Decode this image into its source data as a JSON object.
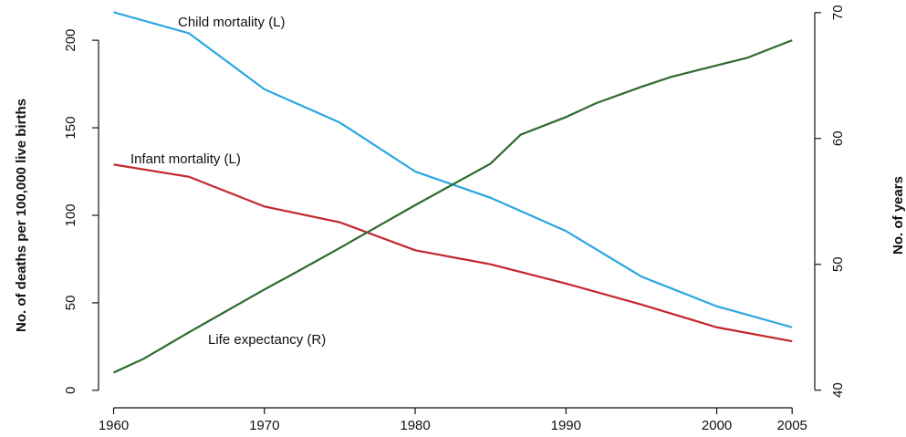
{
  "chart_data": {
    "type": "line",
    "y_label": "No. of deaths per 100,000 live births",
    "y2_label": "No. of years",
    "xlim": [
      1959,
      2006.5
    ],
    "xticks": [
      1960,
      1970,
      1980,
      1990,
      2000,
      2005
    ],
    "ylim": [
      -10,
      223
    ],
    "yticks": [
      0,
      50,
      100,
      150,
      200
    ],
    "y2lim": [
      38.6,
      71
    ],
    "y2ticks": [
      40,
      50,
      60,
      70
    ],
    "grid": false,
    "series": [
      {
        "name": "Child mortality (L)",
        "color": "#2aa6e2",
        "x": [
          1960,
          1965,
          1970,
          1975,
          1980,
          1985,
          1990,
          1995,
          2000,
          2005
        ],
        "values": [
          216,
          204,
          172,
          153,
          125,
          110,
          91,
          65,
          48,
          36
        ]
      },
      {
        "name": "Infant mortality (L)",
        "color": "#c3262c",
        "x": [
          1960,
          1965,
          1970,
          1975,
          1980,
          1985,
          1990,
          1995,
          2000,
          2005
        ],
        "values": [
          129,
          122,
          105,
          96,
          80,
          72,
          61,
          49,
          36,
          28
        ]
      },
      {
        "name": "Life expectancy (R)",
        "color": "#2e6a30",
        "axis": "y2",
        "x": [
          1960,
          1962,
          1965,
          1970,
          1972,
          1975,
          1980,
          1985,
          1987,
          1990,
          1992,
          1995,
          1997,
          2000,
          2002,
          2005
        ],
        "values": [
          41.4,
          42.5,
          44.6,
          48.0,
          49.3,
          51.3,
          54.7,
          58.0,
          60.3,
          61.7,
          62.8,
          64.1,
          64.9,
          65.8,
          66.4,
          67.8
        ]
      }
    ]
  }
}
